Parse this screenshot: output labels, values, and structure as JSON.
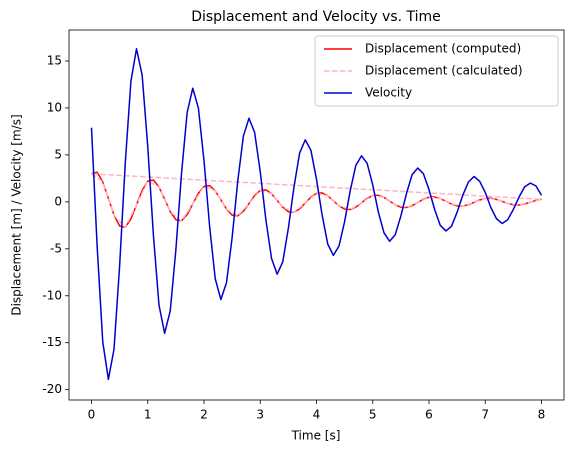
{
  "chart_data": {
    "type": "line",
    "title": "Displacement and Velocity vs. Time",
    "xlabel": "Time [s]",
    "ylabel": "Displacement [m] / Velocity [m/s]",
    "x": [
      0.0,
      0.1,
      0.2,
      0.3,
      0.4,
      0.5,
      0.6,
      0.7,
      0.8,
      0.9,
      1.0,
      1.1,
      1.2,
      1.3,
      1.4,
      1.5,
      1.6,
      1.7,
      1.8,
      1.9,
      2.0,
      2.1,
      2.2,
      2.3,
      2.4,
      2.5,
      2.6,
      2.7,
      2.8,
      2.9,
      3.0,
      3.1,
      3.2,
      3.3,
      3.4,
      3.5,
      3.6,
      3.7,
      3.8,
      3.9,
      4.0,
      4.1,
      4.2,
      4.3,
      4.4,
      4.5,
      4.6,
      4.7,
      4.8,
      4.9,
      5.0,
      5.1,
      5.2,
      5.3,
      5.4,
      5.5,
      5.6,
      5.7,
      5.8,
      5.9,
      6.0,
      6.1,
      6.2,
      6.3,
      6.4,
      6.5,
      6.6,
      6.7,
      6.8,
      6.9,
      7.0,
      7.1,
      7.2,
      7.3,
      7.4,
      7.5,
      7.6,
      7.7,
      7.8,
      7.9,
      8.0
    ],
    "series": [
      {
        "name": "Displacement (computed)",
        "color": "#ff0000",
        "dash": false,
        "values": [
          2.99,
          3.15,
          2.13,
          0.38,
          -1.41,
          -2.57,
          -2.71,
          -1.83,
          -0.32,
          1.21,
          2.21,
          2.33,
          1.58,
          0.28,
          -1.05,
          -1.9,
          -2.01,
          -1.36,
          -0.24,
          0.9,
          1.64,
          1.73,
          1.17,
          0.21,
          -0.77,
          -1.41,
          -1.49,
          -1.01,
          -0.18,
          0.67,
          1.21,
          1.28,
          0.87,
          0.15,
          -0.57,
          -1.05,
          -1.1,
          -0.75,
          -0.13,
          0.49,
          0.9,
          0.95,
          0.64,
          0.11,
          -0.42,
          -0.77,
          -0.82,
          -0.55,
          -0.1,
          0.37,
          0.67,
          0.7,
          0.48,
          0.08,
          -0.31,
          -0.57,
          -0.6,
          -0.41,
          -0.07,
          0.27,
          0.49,
          0.52,
          0.35,
          0.06,
          -0.23,
          -0.43,
          -0.45,
          -0.3,
          -0.05,
          0.2,
          0.37,
          0.39,
          0.26,
          0.05,
          -0.17,
          -0.31,
          -0.33,
          -0.22,
          -0.04,
          0.15,
          0.27
        ]
      },
      {
        "name": "Displacement (calculated)",
        "color": "#ffb6c1",
        "dash": true,
        "x": [
          0.0,
          0.2,
          0.4,
          0.6,
          0.8,
          1.0,
          1.2,
          1.4,
          1.6,
          1.8,
          2.0,
          2.2,
          2.4,
          2.6,
          2.8,
          3.0,
          3.2,
          3.4,
          3.6,
          3.8,
          4.0,
          4.2,
          4.4,
          4.6,
          4.8,
          5.0,
          5.2,
          5.4,
          5.6,
          5.8,
          6.0,
          6.2,
          6.4,
          6.6,
          6.8,
          7.0,
          7.2,
          7.4,
          7.6,
          7.8,
          8.0,
          0.0
        ],
        "values": [
          2.99,
          2.13,
          -1.41,
          -2.71,
          -0.32,
          2.21,
          1.58,
          -1.05,
          -2.01,
          -0.24,
          1.64,
          1.17,
          -0.77,
          -1.49,
          -0.18,
          1.21,
          0.87,
          -0.57,
          -1.1,
          -0.13,
          0.9,
          0.64,
          -0.42,
          -0.82,
          -0.1,
          0.67,
          0.48,
          -0.31,
          -0.6,
          -0.07,
          0.49,
          0.35,
          -0.23,
          -0.45,
          -0.05,
          0.37,
          0.26,
          -0.17,
          -0.33,
          -0.04,
          0.27,
          2.99
        ]
      },
      {
        "name": "Velocity",
        "color": "#0000cd",
        "dash": false,
        "values": [
          7.9,
          -4.7,
          -14.9,
          -18.9,
          -15.7,
          -6.8,
          4.1,
          12.8,
          16.3,
          13.5,
          5.9,
          -3.5,
          -11.0,
          -14.0,
          -11.6,
          -5.1,
          3.0,
          9.5,
          12.1,
          10.0,
          4.4,
          -2.6,
          -8.2,
          -10.4,
          -8.6,
          -3.8,
          2.2,
          7.0,
          8.9,
          7.4,
          3.2,
          -1.9,
          -6.0,
          -7.7,
          -6.4,
          -2.8,
          1.6,
          5.2,
          6.6,
          5.5,
          2.4,
          -1.4,
          -4.5,
          -5.7,
          -4.7,
          -2.1,
          1.2,
          3.9,
          4.9,
          4.1,
          1.8,
          -1.1,
          -3.3,
          -4.2,
          -3.5,
          -1.5,
          0.9,
          2.9,
          3.6,
          3.0,
          1.3,
          -0.8,
          -2.5,
          -3.1,
          -2.6,
          -1.1,
          0.7,
          2.1,
          2.7,
          2.2,
          1.0,
          -0.6,
          -1.8,
          -2.3,
          -1.9,
          -0.8,
          0.5,
          1.6,
          2.0,
          1.7,
          0.7
        ]
      }
    ],
    "xlim": [
      -0.4,
      8.4
    ],
    "ylim": [
      -21.1,
      18.3
    ],
    "xticks": [
      0,
      1,
      2,
      3,
      4,
      5,
      6,
      7,
      8
    ],
    "yticks": [
      -20,
      -15,
      -10,
      -5,
      0,
      5,
      10,
      15
    ],
    "grid": false,
    "legend": "upper right"
  }
}
